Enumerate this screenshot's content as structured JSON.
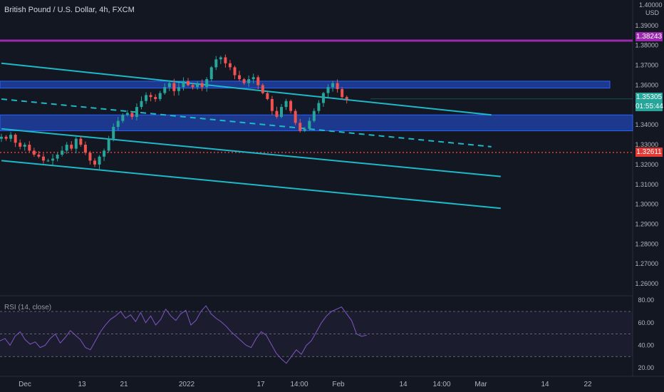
{
  "header": {
    "title": "British Pound / U.S. Dollar, 4h, FXCM",
    "currency": "USD",
    "top_price": "1.40000"
  },
  "rsi": {
    "title": "RSI (14, close)",
    "ticks": [
      "80.00",
      "60.00",
      "40.00",
      "20.00"
    ]
  },
  "badges": {
    "level_high": "1.38243",
    "last_price": "1.35305",
    "countdown": "01:55:44",
    "level_low": "1.32611"
  },
  "colors": {
    "background": "#131722",
    "up": "#26a69a",
    "down": "#ef5350",
    "channel": "#1fb8c7",
    "zone": "#1e3fa0",
    "resistance": "#9c27b0",
    "support_dotted": "#e53935",
    "rsi": "#7e57c2"
  },
  "chart_data": {
    "type": "candlestick",
    "symbol": "GBPUSD",
    "timeframe": "4h",
    "y_ticks": [
      1.39,
      1.38,
      1.37,
      1.36,
      1.35,
      1.34,
      1.33,
      1.32,
      1.31,
      1.3,
      1.29,
      1.28,
      1.27,
      1.26
    ],
    "y_tick_labels": [
      "1.39000",
      "1.38000",
      "1.37000",
      "1.36000",
      "1.35000",
      "1.34000",
      "1.33000",
      "1.32000",
      "1.31000",
      "1.30000",
      "1.29000",
      "1.28000",
      "1.27000",
      "1.26000"
    ],
    "ylim": [
      1.255,
      1.4
    ],
    "x_labels": [
      "Dec",
      "13",
      "21",
      "2022",
      "17",
      "14:00",
      "Feb",
      "14",
      "14:00",
      "Mar",
      "14",
      "22"
    ],
    "close_path": [
      1.334,
      1.333,
      1.335,
      1.331,
      1.329,
      1.33,
      1.327,
      1.325,
      1.324,
      1.322,
      1.322,
      1.323,
      1.325,
      1.327,
      1.33,
      1.328,
      1.333,
      1.33,
      1.326,
      1.322,
      1.32,
      1.324,
      1.327,
      1.333,
      1.339,
      1.342,
      1.345,
      1.346,
      1.344,
      1.349,
      1.352,
      1.355,
      1.354,
      1.353,
      1.356,
      1.359,
      1.361,
      1.357,
      1.359,
      1.362,
      1.36,
      1.359,
      1.361,
      1.359,
      1.363,
      1.369,
      1.373,
      1.374,
      1.371,
      1.369,
      1.365,
      1.363,
      1.361,
      1.363,
      1.364,
      1.36,
      1.356,
      1.353,
      1.347,
      1.344,
      1.349,
      1.352,
      1.347,
      1.341,
      1.337,
      1.338,
      1.342,
      1.347,
      1.351,
      1.356,
      1.359,
      1.361,
      1.358,
      1.354,
      1.353
    ],
    "horizontal_levels": [
      {
        "price": 1.38243,
        "style": "solid",
        "color": "#9c27b0"
      },
      {
        "price": 1.32611,
        "style": "dotted",
        "color": "#e53935"
      },
      {
        "price": 1.35305,
        "style": "thin",
        "color": "#26a69a"
      }
    ],
    "zones": [
      {
        "top": 1.362,
        "bottom": 1.3585
      },
      {
        "top": 1.345,
        "bottom": 1.337
      }
    ],
    "trendlines": [
      {
        "style": "solid",
        "from": {
          "i": 0,
          "price": 1.371
        },
        "to": {
          "i": 105,
          "price": 1.345
        }
      },
      {
        "style": "dashed",
        "from": {
          "i": 0,
          "price": 1.353
        },
        "to": {
          "i": 105,
          "price": 1.329
        }
      },
      {
        "style": "solid",
        "from": {
          "i": 0,
          "price": 1.338
        },
        "to": {
          "i": 107,
          "price": 1.314
        }
      },
      {
        "style": "solid",
        "from": {
          "i": 0,
          "price": 1.322
        },
        "to": {
          "i": 107,
          "price": 1.298
        }
      }
    ],
    "rsi_path": [
      44,
      46,
      40,
      48,
      52,
      45,
      41,
      43,
      38,
      40,
      46,
      50,
      42,
      47,
      53,
      49,
      45,
      38,
      36,
      44,
      52,
      58,
      63,
      66,
      70,
      64,
      67,
      61,
      69,
      60,
      66,
      58,
      63,
      72,
      66,
      62,
      68,
      71,
      58,
      62,
      70,
      75,
      68,
      64,
      61,
      57,
      52,
      48,
      44,
      40,
      38,
      46,
      52,
      49,
      41,
      33,
      28,
      24,
      30,
      36,
      32,
      40,
      44,
      52,
      60,
      66,
      70,
      72,
      74,
      68,
      62,
      50,
      48,
      49
    ],
    "rsi_levels": [
      70,
      50,
      30
    ],
    "rsi_ylim": [
      15,
      82
    ]
  }
}
